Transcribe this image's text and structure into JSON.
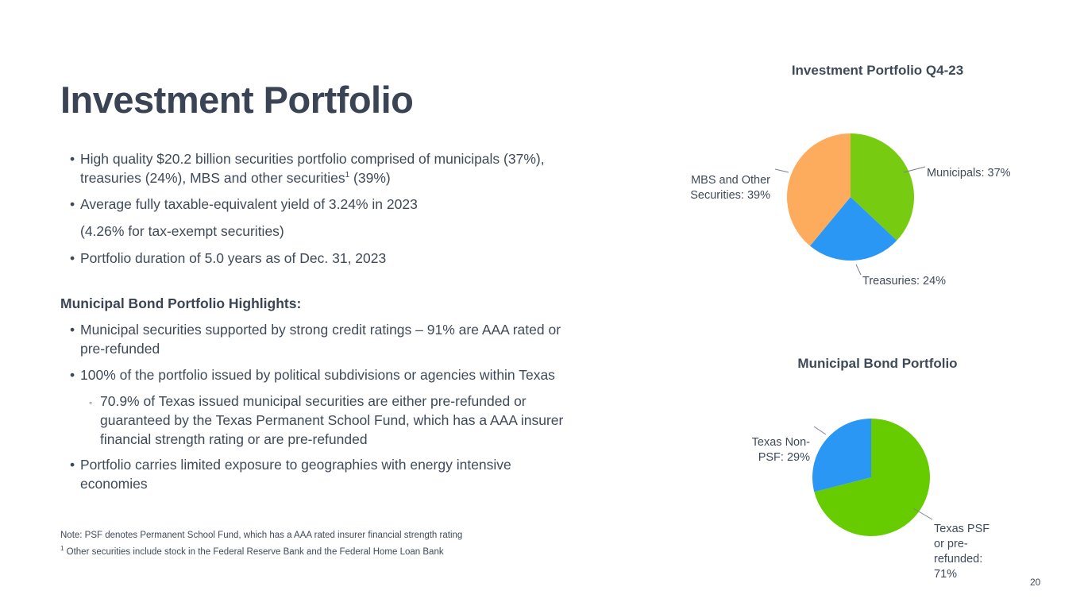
{
  "title": "Investment Portfolio",
  "bullets": [
    {
      "line1": "High quality $20.2 billion securities portfolio comprised of municipals (37%),",
      "line2_pre": "treasuries (24%), MBS and other securities",
      "line2_sup": "1",
      "line2_post": " (39%)"
    },
    {
      "text": "Average fully taxable-equivalent yield of 3.24% in 2023"
    },
    {
      "text": "(4.26% for tax-exempt securities)"
    },
    {
      "text": "Portfolio duration of 5.0 years as of Dec. 31, 2023"
    }
  ],
  "muni_heading": "Municipal Bond Portfolio Highlights:",
  "muni_bullets": [
    {
      "line1": "Municipal securities supported by strong credit ratings – 91% are AAA rated or",
      "line2": "pre-refunded"
    },
    {
      "line1": "100% of the portfolio issued by political subdivisions or agencies within Texas"
    },
    {
      "line1": "70.9% of Texas issued municipal securities are either pre-refunded or",
      "line2": "guaranteed by the Texas Permanent School Fund, which has a AAA insurer",
      "line3": "financial strength rating or are pre-refunded"
    },
    {
      "line1": "Portfolio carries limited exposure to geographies with energy intensive",
      "line2": "economies"
    }
  ],
  "bullet_glyph": "•",
  "sub_bullet_glyph": "◦",
  "notes": {
    "note1": "Note: PSF denotes Permanent School Fund, which has a AAA rated insurer financial strength rating",
    "note2_sup": "1",
    "note2": " Other securities include stock in the Federal Reserve Bank and the Federal Home Loan Bank"
  },
  "page_number": "20",
  "chart_data": [
    {
      "type": "pie",
      "title": "Investment Portfolio Q4-23",
      "slices": [
        {
          "label": "Municipals: 37%",
          "lines": [
            "Municipals: 37%"
          ],
          "value": 37,
          "color": "#77cc11"
        },
        {
          "label": "Treasuries: 24%",
          "lines": [
            "Treasuries: 24%"
          ],
          "value": 24,
          "color": "#2b97f5"
        },
        {
          "label": "MBS and Other Securities: 39%",
          "lines": [
            "MBS and Other",
            "Securities: 39%"
          ],
          "value": 39,
          "color": "#fdab5c"
        }
      ]
    },
    {
      "type": "pie",
      "title": "Municipal Bond Portfolio",
      "slices": [
        {
          "label": "Texas PSF or pre-refunded: 71%",
          "lines": [
            "Texas PSF",
            "or pre-",
            "refunded:",
            "71%"
          ],
          "value": 71,
          "color": "#66cc00"
        },
        {
          "label": "Texas Non-PSF: 29%",
          "lines": [
            "Texas Non-",
            "PSF: 29%"
          ],
          "value": 29,
          "color": "#2b97f5"
        }
      ]
    }
  ]
}
